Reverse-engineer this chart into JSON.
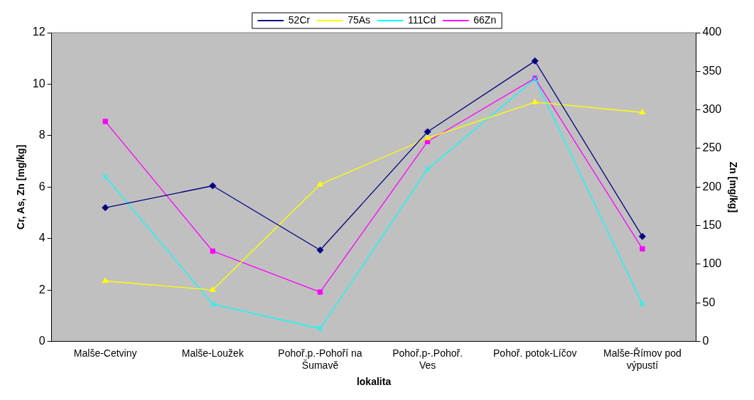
{
  "chart_data": {
    "type": "line",
    "xlabel": "lokalita",
    "ylabel": "Cr, As, Zn [mg/kg]",
    "y2label": "Zn [mg/kg]",
    "categories": [
      "Malše-Cetviny",
      "Malše-Loužek",
      "Pohoř.p.-Pohoří na Šumavě",
      "Pohoř.p-.Pohoř. Ves",
      "Pohoř. potok-Líčov",
      "Malše-Římov pod výpustí"
    ],
    "series": [
      {
        "name": "52Cr",
        "color": "#000080",
        "marker": "diamond",
        "values": [
          5.2,
          6.05,
          3.55,
          8.15,
          10.9,
          4.08
        ]
      },
      {
        "name": "75As",
        "color": "#ffff00",
        "marker": "triangle",
        "values": [
          2.35,
          2.0,
          6.1,
          7.9,
          9.3,
          8.9
        ]
      },
      {
        "name": "111Cd",
        "color": "#00ffff",
        "marker": "cross",
        "values": [
          6.4,
          1.45,
          0.5,
          6.7,
          10.2,
          1.45
        ]
      },
      {
        "name": "66Zn",
        "color": "#ff00ff",
        "marker": "square",
        "axis": "y2",
        "values": [
          285,
          117,
          64,
          259,
          341,
          120
        ]
      }
    ],
    "ylim": [
      0,
      12
    ],
    "yticks": [
      0,
      2,
      4,
      6,
      8,
      10,
      12
    ],
    "y2lim": [
      0,
      400
    ],
    "y2ticks": [
      0,
      50,
      100,
      150,
      200,
      250,
      300,
      350,
      400
    ],
    "grid": false,
    "legend": "top",
    "line_style": "solid"
  }
}
